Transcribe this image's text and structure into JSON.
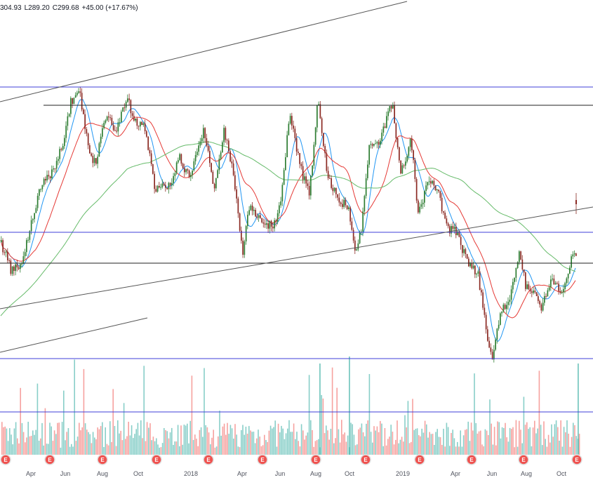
{
  "legend": {
    "high": "304.93",
    "low": "L289.20",
    "close": "C299.68",
    "change": "+45.00 (+17.67%)"
  },
  "colors": {
    "up": "#26a69a",
    "down": "#ef5350",
    "up_candle": "#2e7d32",
    "down_candle": "#8b2a23",
    "ma_fast": "#2196f3",
    "ma_mid": "#e53935",
    "ma_slow": "#66bb6a",
    "hline_blue": "#3f3fd9",
    "hline_black": "#222222",
    "trendline": "#555555",
    "earnings_marker": "#ef5350",
    "earnings_marker_ring": "#e0e0e0"
  },
  "chart_data": {
    "type": "candlestick",
    "x_tick_labels": [
      "Apr",
      "Jun",
      "Aug",
      "Oct",
      "2018",
      "Apr",
      "Jun",
      "Aug",
      "Oct",
      "2019",
      "Apr",
      "Jun",
      "Aug",
      "Oct"
    ],
    "earnings_marker_label": "E",
    "earnings_marker_count": 11,
    "overlays": [
      "moving-average-fast",
      "moving-average-mid",
      "moving-average-slow"
    ],
    "horizontal_levels": 6,
    "trendlines": 3,
    "volume_pane": true,
    "grid": false
  }
}
